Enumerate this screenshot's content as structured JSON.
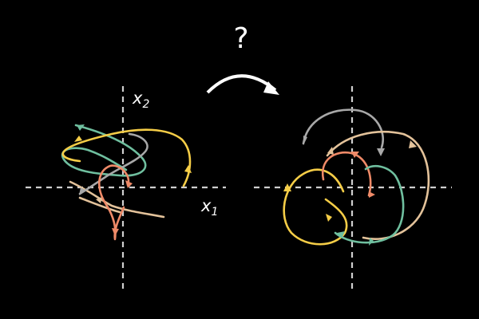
{
  "question": "?",
  "left_panel": {
    "x_axis_label": "x",
    "x_axis_sub": "1",
    "y_axis_label": "x",
    "y_axis_sub": "2"
  },
  "colors": {
    "background": "#000000",
    "axis": "#cfcfcf",
    "arrow": "#ffffff",
    "yellow": "#f5cd47",
    "teal": "#6fbf9f",
    "salmon": "#ef8a68",
    "gray": "#a8a8a8",
    "tan": "#e3c29a"
  }
}
